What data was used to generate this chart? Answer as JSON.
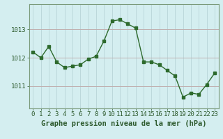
{
  "x": [
    0,
    1,
    2,
    3,
    4,
    5,
    6,
    7,
    8,
    9,
    10,
    11,
    12,
    13,
    14,
    15,
    16,
    17,
    18,
    19,
    20,
    21,
    22,
    23
  ],
  "y": [
    1012.2,
    1012.0,
    1012.4,
    1011.85,
    1011.65,
    1011.7,
    1011.75,
    1011.95,
    1012.05,
    1012.6,
    1013.3,
    1013.35,
    1013.2,
    1013.05,
    1011.85,
    1011.85,
    1011.75,
    1011.55,
    1011.35,
    1010.6,
    1010.75,
    1010.7,
    1011.05,
    1011.45
  ],
  "line_color": "#2d6a2d",
  "marker": "s",
  "markersize": 2.5,
  "linewidth": 1.0,
  "bg_color": "#d4eef0",
  "grid_color_v": "#b8d4d8",
  "grid_color_h": "#c0b0b0",
  "title": "Graphe pression niveau de la mer (hPa)",
  "yticks": [
    1011,
    1012,
    1013
  ],
  "ylim": [
    1010.2,
    1013.9
  ],
  "xlim": [
    -0.5,
    23.5
  ],
  "xtick_labels": [
    "0",
    "1",
    "2",
    "3",
    "4",
    "5",
    "6",
    "7",
    "8",
    "9",
    "10",
    "11",
    "12",
    "13",
    "14",
    "15",
    "16",
    "17",
    "18",
    "19",
    "20",
    "21",
    "22",
    "23"
  ],
  "title_fontsize": 7.5,
  "tick_fontsize": 6.5,
  "title_fontweight": "bold",
  "text_color": "#2d5a2d"
}
